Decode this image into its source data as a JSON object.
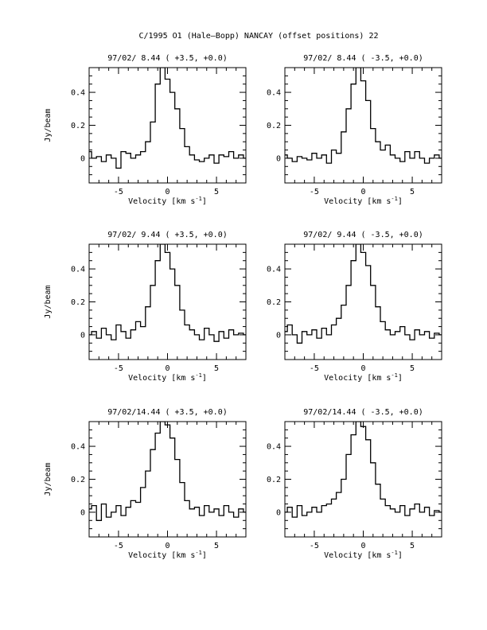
{
  "page_title": "C/1995 O1 (Hale–Bopp)   NANCAY     (offset positions)   22",
  "chart_data": [
    {
      "type": "line",
      "title": "97/02/ 8.44  ( +3.5, +0.0)",
      "xlabel": "Velocity [km s",
      "xlabel_sup": "-1",
      "xlabel_end": "]",
      "ylabel": "Jy/beam",
      "xlim": [
        -8,
        8
      ],
      "ylim": [
        -0.15,
        0.55
      ],
      "xticks": [
        "-5",
        "0",
        "5"
      ],
      "yticks": [
        "0",
        "0.2",
        "0.4"
      ],
      "x": [
        -8,
        -7.5,
        -7,
        -6.5,
        -6,
        -5.5,
        -5,
        -4.5,
        -4,
        -3.5,
        -3,
        -2.5,
        -2,
        -1.5,
        -1,
        -0.5,
        0,
        0.5,
        1,
        1.5,
        2,
        2.5,
        3,
        3.5,
        4,
        4.5,
        5,
        5.5,
        6,
        6.5,
        7,
        7.5,
        8
      ],
      "series": [
        {
          "values": [
            0.04,
            0.0,
            0.01,
            -0.02,
            0.02,
            0.0,
            -0.06,
            0.04,
            0.03,
            0.0,
            0.02,
            0.04,
            0.1,
            0.22,
            0.45,
            0.55,
            0.48,
            0.4,
            0.3,
            0.18,
            0.07,
            0.02,
            -0.01,
            -0.02,
            0.0,
            0.02,
            -0.03,
            0.02,
            0.01,
            0.04,
            0.0,
            0.02,
            0.0
          ]
        }
      ]
    },
    {
      "type": "line",
      "title": "97/02/ 8.44  ( -3.5, +0.0)",
      "xlabel": "Velocity [km s",
      "xlabel_sup": "-1",
      "xlabel_end": "]",
      "ylabel": "",
      "xlim": [
        -8,
        8
      ],
      "ylim": [
        -0.15,
        0.55
      ],
      "xticks": [
        "-5",
        "0",
        "5"
      ],
      "yticks": [
        "0",
        "0.2",
        "0.4"
      ],
      "x": [
        -8,
        -7.5,
        -7,
        -6.5,
        -6,
        -5.5,
        -5,
        -4.5,
        -4,
        -3.5,
        -3,
        -2.5,
        -2,
        -1.5,
        -1,
        -0.5,
        0,
        0.5,
        1,
        1.5,
        2,
        2.5,
        3,
        3.5,
        4,
        4.5,
        5,
        5.5,
        6,
        6.5,
        7,
        7.5,
        8
      ],
      "series": [
        {
          "values": [
            0.02,
            0.0,
            -0.02,
            0.01,
            0.0,
            -0.01,
            0.03,
            0.0,
            0.02,
            -0.03,
            0.05,
            0.03,
            0.16,
            0.3,
            0.45,
            0.55,
            0.47,
            0.35,
            0.18,
            0.1,
            0.05,
            0.08,
            0.02,
            0.0,
            -0.02,
            0.04,
            0.0,
            0.04,
            0.0,
            -0.03,
            0.0,
            0.02,
            0.0
          ]
        }
      ]
    },
    {
      "type": "line",
      "title": "97/02/ 9.44  ( +3.5, +0.0)",
      "xlabel": "Velocity [km s",
      "xlabel_sup": "-1",
      "xlabel_end": "]",
      "ylabel": "Jy/beam",
      "xlim": [
        -8,
        8
      ],
      "ylim": [
        -0.15,
        0.55
      ],
      "xticks": [
        "-5",
        "0",
        "5"
      ],
      "yticks": [
        "0",
        "0.2",
        "0.4"
      ],
      "x": [
        -8,
        -7.5,
        -7,
        -6.5,
        -6,
        -5.5,
        -5,
        -4.5,
        -4,
        -3.5,
        -3,
        -2.5,
        -2,
        -1.5,
        -1,
        -0.5,
        0,
        0.5,
        1,
        1.5,
        2,
        2.5,
        3,
        3.5,
        4,
        4.5,
        5,
        5.5,
        6,
        6.5,
        7,
        7.5,
        8
      ],
      "series": [
        {
          "values": [
            0.0,
            0.02,
            -0.02,
            0.04,
            0.0,
            -0.03,
            0.06,
            0.02,
            -0.02,
            0.03,
            0.08,
            0.05,
            0.17,
            0.3,
            0.45,
            0.55,
            0.5,
            0.4,
            0.3,
            0.15,
            0.06,
            0.03,
            0.0,
            -0.03,
            0.04,
            0.0,
            -0.04,
            0.02,
            -0.02,
            0.03,
            0.0,
            0.01,
            0.0
          ]
        }
      ]
    },
    {
      "type": "line",
      "title": "97/02/ 9.44  ( -3.5, +0.0)",
      "xlabel": "Velocity [km s",
      "xlabel_sup": "-1",
      "xlabel_end": "]",
      "ylabel": "",
      "xlim": [
        -8,
        8
      ],
      "ylim": [
        -0.15,
        0.55
      ],
      "xticks": [
        "-5",
        "0",
        "5"
      ],
      "yticks": [
        "0",
        "0.2",
        "0.4"
      ],
      "x": [
        -8,
        -7.5,
        -7,
        -6.5,
        -6,
        -5.5,
        -5,
        -4.5,
        -4,
        -3.5,
        -3,
        -2.5,
        -2,
        -1.5,
        -1,
        -0.5,
        0,
        0.5,
        1,
        1.5,
        2,
        2.5,
        3,
        3.5,
        4,
        4.5,
        5,
        5.5,
        6,
        6.5,
        7,
        7.5,
        8
      ],
      "series": [
        {
          "values": [
            0.02,
            0.06,
            0.0,
            -0.05,
            0.02,
            0.0,
            0.03,
            -0.02,
            0.04,
            0.0,
            0.06,
            0.1,
            0.18,
            0.3,
            0.45,
            0.55,
            0.5,
            0.42,
            0.3,
            0.17,
            0.08,
            0.03,
            0.0,
            0.02,
            0.05,
            0.0,
            -0.03,
            0.03,
            0.0,
            0.02,
            -0.02,
            0.01,
            0.0
          ]
        }
      ]
    },
    {
      "type": "line",
      "title": "97/02/14.44  ( +3.5, +0.0)",
      "xlabel": "Velocity [km s",
      "xlabel_sup": "-1",
      "xlabel_end": "]",
      "ylabel": "Jy/beam",
      "xlim": [
        -8,
        8
      ],
      "ylim": [
        -0.15,
        0.55
      ],
      "xticks": [
        "-5",
        "0",
        "5"
      ],
      "yticks": [
        "0",
        "0.2",
        "0.4"
      ],
      "x": [
        -8,
        -7.5,
        -7,
        -6.5,
        -6,
        -5.5,
        -5,
        -4.5,
        -4,
        -3.5,
        -3,
        -2.5,
        -2,
        -1.5,
        -1,
        -0.5,
        0,
        0.5,
        1,
        1.5,
        2,
        2.5,
        3,
        3.5,
        4,
        4.5,
        5,
        5.5,
        6,
        6.5,
        7,
        7.5,
        8
      ],
      "series": [
        {
          "values": [
            0.02,
            0.04,
            -0.05,
            0.05,
            -0.03,
            0.0,
            0.04,
            -0.02,
            0.03,
            0.07,
            0.06,
            0.15,
            0.25,
            0.38,
            0.48,
            0.55,
            0.53,
            0.45,
            0.32,
            0.18,
            0.07,
            0.02,
            0.03,
            -0.02,
            0.04,
            0.0,
            0.02,
            -0.02,
            0.04,
            0.0,
            -0.03,
            0.02,
            0.0
          ]
        }
      ]
    },
    {
      "type": "line",
      "title": "97/02/14.44  ( -3.5, +0.0)",
      "xlabel": "Velocity [km s",
      "xlabel_sup": "-1",
      "xlabel_end": "]",
      "ylabel": "",
      "xlim": [
        -8,
        8
      ],
      "ylim": [
        -0.15,
        0.55
      ],
      "xticks": [
        "-5",
        "0",
        "5"
      ],
      "yticks": [
        "0",
        "0.2",
        "0.4"
      ],
      "x": [
        -8,
        -7.5,
        -7,
        -6.5,
        -6,
        -5.5,
        -5,
        -4.5,
        -4,
        -3.5,
        -3,
        -2.5,
        -2,
        -1.5,
        -1,
        -0.5,
        0,
        0.5,
        1,
        1.5,
        2,
        2.5,
        3,
        3.5,
        4,
        4.5,
        5,
        5.5,
        6,
        6.5,
        7,
        7.5,
        8
      ],
      "series": [
        {
          "values": [
            0.0,
            0.03,
            -0.03,
            0.04,
            -0.02,
            0.0,
            0.03,
            0.0,
            0.04,
            0.05,
            0.08,
            0.12,
            0.2,
            0.35,
            0.47,
            0.55,
            0.52,
            0.44,
            0.3,
            0.17,
            0.08,
            0.04,
            0.02,
            0.0,
            0.04,
            -0.02,
            0.02,
            0.05,
            0.0,
            0.03,
            -0.02,
            0.01,
            0.0
          ]
        }
      ]
    }
  ]
}
